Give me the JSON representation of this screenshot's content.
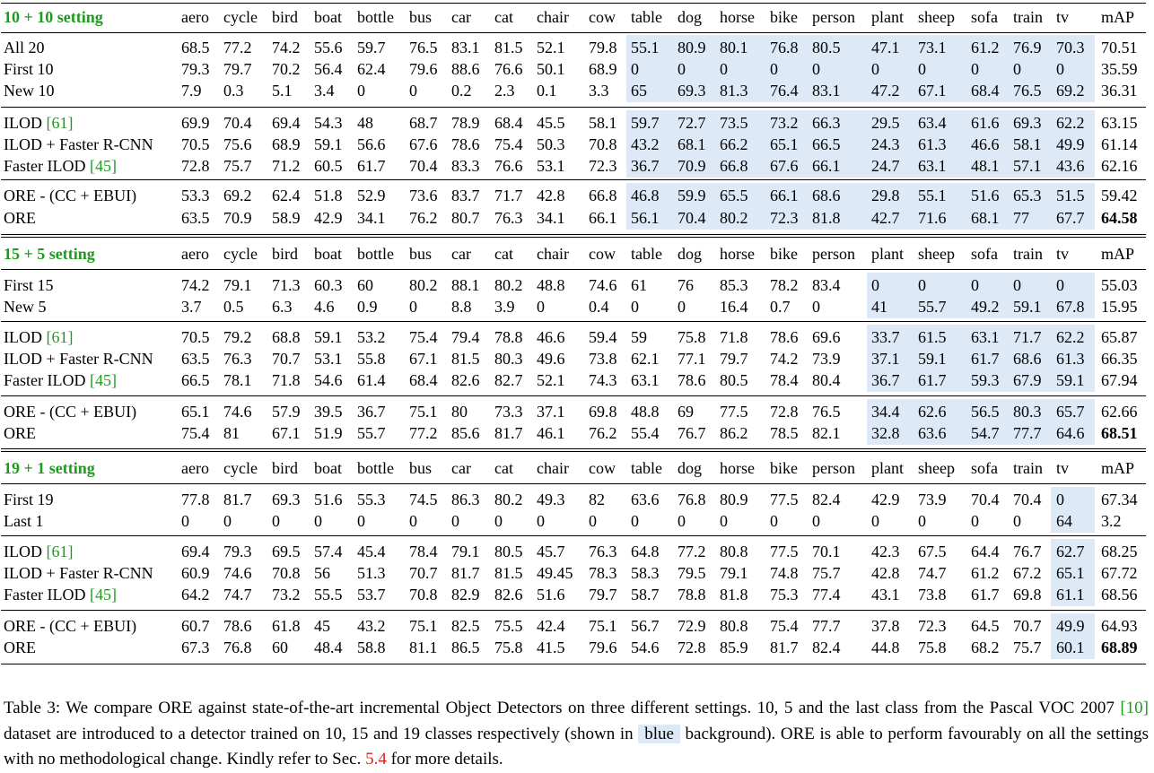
{
  "columns": [
    "aero",
    "cycle",
    "bird",
    "boat",
    "bottle",
    "bus",
    "car",
    "cat",
    "chair",
    "cow",
    "table",
    "dog",
    "horse",
    "bike",
    "person",
    "plant",
    "sheep",
    "sofa",
    "train",
    "tv",
    "mAP"
  ],
  "highlight_color": "#dde9f7",
  "heading_color": "#1f9a1f",
  "sections": [
    {
      "setting": "10 + 10 setting",
      "groups": [
        [
          {
            "method": "All 20",
            "values": [
              "68.5",
              "77.2",
              "74.2",
              "55.6",
              "59.7",
              "76.5",
              "83.1",
              "81.5",
              "52.1",
              "79.8",
              "55.1",
              "80.9",
              "80.1",
              "76.8",
              "80.5",
              "47.1",
              "73.1",
              "61.2",
              "76.9",
              "70.3",
              "70.51"
            ]
          },
          {
            "method": "First 10",
            "values": [
              "79.3",
              "79.7",
              "70.2",
              "56.4",
              "62.4",
              "79.6",
              "88.6",
              "76.6",
              "50.1",
              "68.9",
              "0",
              "0",
              "0",
              "0",
              "0",
              "0",
              "0",
              "0",
              "0",
              "0",
              "35.59"
            ]
          },
          {
            "method": "New 10",
            "values": [
              "7.9",
              "0.3",
              "5.1",
              "3.4",
              "0",
              "0",
              "0.2",
              "2.3",
              "0.1",
              "3.3",
              "65",
              "69.3",
              "81.3",
              "76.4",
              "83.1",
              "47.2",
              "67.1",
              "68.4",
              "76.5",
              "69.2",
              "36.31"
            ]
          }
        ],
        [
          {
            "method": "ILOD ",
            "ref": "[61]",
            "values": [
              "69.9",
              "70.4",
              "69.4",
              "54.3",
              "48",
              "68.7",
              "78.9",
              "68.4",
              "45.5",
              "58.1",
              "59.7",
              "72.7",
              "73.5",
              "73.2",
              "66.3",
              "29.5",
              "63.4",
              "61.6",
              "69.3",
              "62.2",
              "63.15"
            ]
          },
          {
            "method": "ILOD + Faster R-CNN",
            "values": [
              "70.5",
              "75.6",
              "68.9",
              "59.1",
              "56.6",
              "67.6",
              "78.6",
              "75.4",
              "50.3",
              "70.8",
              "43.2",
              "68.1",
              "66.2",
              "65.1",
              "66.5",
              "24.3",
              "61.3",
              "46.6",
              "58.1",
              "49.9",
              "61.14"
            ]
          },
          {
            "method": "Faster ILOD ",
            "ref": "[45]",
            "values": [
              "72.8",
              "75.7",
              "71.2",
              "60.5",
              "61.7",
              "70.4",
              "83.3",
              "76.6",
              "53.1",
              "72.3",
              "36.7",
              "70.9",
              "66.8",
              "67.6",
              "66.1",
              "24.7",
              "63.1",
              "48.1",
              "57.1",
              "43.6",
              "62.16"
            ]
          }
        ],
        [
          {
            "method": "ORE - (CC + EBUI)",
            "values": [
              "53.3",
              "69.2",
              "62.4",
              "51.8",
              "52.9",
              "73.6",
              "83.7",
              "71.7",
              "42.8",
              "66.8",
              "46.8",
              "59.9",
              "65.5",
              "66.1",
              "68.6",
              "29.8",
              "55.1",
              "51.6",
              "65.3",
              "51.5",
              "59.42"
            ]
          },
          {
            "method": "ORE",
            "bold_map": true,
            "values": [
              "63.5",
              "70.9",
              "58.9",
              "42.9",
              "34.1",
              "76.2",
              "80.7",
              "76.3",
              "34.1",
              "66.1",
              "56.1",
              "70.4",
              "80.2",
              "72.3",
              "81.8",
              "42.7",
              "71.6",
              "68.1",
              "77",
              "67.7",
              "64.58"
            ]
          }
        ]
      ]
    },
    {
      "setting": "15 + 5 setting",
      "groups": [
        [
          {
            "method": "First 15",
            "values": [
              "74.2",
              "79.1",
              "71.3",
              "60.3",
              "60",
              "80.2",
              "88.1",
              "80.2",
              "48.8",
              "74.6",
              "61",
              "76",
              "85.3",
              "78.2",
              "83.4",
              "0",
              "0",
              "0",
              "0",
              "0",
              "55.03"
            ]
          },
          {
            "method": "New 5",
            "values": [
              "3.7",
              "0.5",
              "6.3",
              "4.6",
              "0.9",
              "0",
              "8.8",
              "3.9",
              "0",
              "0.4",
              "0",
              "0",
              "16.4",
              "0.7",
              "0",
              "41",
              "55.7",
              "49.2",
              "59.1",
              "67.8",
              "15.95"
            ]
          }
        ],
        [
          {
            "method": "ILOD ",
            "ref": "[61]",
            "values": [
              "70.5",
              "79.2",
              "68.8",
              "59.1",
              "53.2",
              "75.4",
              "79.4",
              "78.8",
              "46.6",
              "59.4",
              "59",
              "75.8",
              "71.8",
              "78.6",
              "69.6",
              "33.7",
              "61.5",
              "63.1",
              "71.7",
              "62.2",
              "65.87"
            ]
          },
          {
            "method": "ILOD + Faster R-CNN",
            "values": [
              "63.5",
              "76.3",
              "70.7",
              "53.1",
              "55.8",
              "67.1",
              "81.5",
              "80.3",
              "49.6",
              "73.8",
              "62.1",
              "77.1",
              "79.7",
              "74.2",
              "73.9",
              "37.1",
              "59.1",
              "61.7",
              "68.6",
              "61.3",
              "66.35"
            ]
          },
          {
            "method": "Faster ILOD ",
            "ref": "[45]",
            "values": [
              "66.5",
              "78.1",
              "71.8",
              "54.6",
              "61.4",
              "68.4",
              "82.6",
              "82.7",
              "52.1",
              "74.3",
              "63.1",
              "78.6",
              "80.5",
              "78.4",
              "80.4",
              "36.7",
              "61.7",
              "59.3",
              "67.9",
              "59.1",
              "67.94"
            ]
          }
        ],
        [
          {
            "method": "ORE - (CC + EBUI)",
            "values": [
              "65.1",
              "74.6",
              "57.9",
              "39.5",
              "36.7",
              "75.1",
              "80",
              "73.3",
              "37.1",
              "69.8",
              "48.8",
              "69",
              "77.5",
              "72.8",
              "76.5",
              "34.4",
              "62.6",
              "56.5",
              "80.3",
              "65.7",
              "62.66"
            ]
          },
          {
            "method": "ORE",
            "bold_map": true,
            "values": [
              "75.4",
              "81",
              "67.1",
              "51.9",
              "55.7",
              "77.2",
              "85.6",
              "81.7",
              "46.1",
              "76.2",
              "55.4",
              "76.7",
              "86.2",
              "78.5",
              "82.1",
              "32.8",
              "63.6",
              "54.7",
              "77.7",
              "64.6",
              "68.51"
            ]
          }
        ]
      ]
    },
    {
      "setting": "19 + 1 setting",
      "groups": [
        [
          {
            "method": "First 19",
            "values": [
              "77.8",
              "81.7",
              "69.3",
              "51.6",
              "55.3",
              "74.5",
              "86.3",
              "80.2",
              "49.3",
              "82",
              "63.6",
              "76.8",
              "80.9",
              "77.5",
              "82.4",
              "42.9",
              "73.9",
              "70.4",
              "70.4",
              "0",
              "67.34"
            ]
          },
          {
            "method": "Last 1",
            "values": [
              "0",
              "0",
              "0",
              "0",
              "0",
              "0",
              "0",
              "0",
              "0",
              "0",
              "0",
              "0",
              "0",
              "0",
              "0",
              "0",
              "0",
              "0",
              "0",
              "64",
              "3.2"
            ]
          }
        ],
        [
          {
            "method": "ILOD ",
            "ref": "[61]",
            "values": [
              "69.4",
              "79.3",
              "69.5",
              "57.4",
              "45.4",
              "78.4",
              "79.1",
              "80.5",
              "45.7",
              "76.3",
              "64.8",
              "77.2",
              "80.8",
              "77.5",
              "70.1",
              "42.3",
              "67.5",
              "64.4",
              "76.7",
              "62.7",
              "68.25"
            ]
          },
          {
            "method": "ILOD + Faster R-CNN",
            "values": [
              "60.9",
              "74.6",
              "70.8",
              "56",
              "51.3",
              "70.7",
              "81.7",
              "81.5",
              "49.45",
              "78.3",
              "58.3",
              "79.5",
              "79.1",
              "74.8",
              "75.7",
              "42.8",
              "74.7",
              "61.2",
              "67.2",
              "65.1",
              "67.72"
            ]
          },
          {
            "method": "Faster ILOD ",
            "ref": "[45]",
            "values": [
              "64.2",
              "74.7",
              "73.2",
              "55.5",
              "53.7",
              "70.8",
              "82.9",
              "82.6",
              "51.6",
              "79.7",
              "58.7",
              "78.8",
              "81.8",
              "75.3",
              "77.4",
              "43.1",
              "73.8",
              "61.7",
              "69.8",
              "61.1",
              "68.56"
            ]
          }
        ],
        [
          {
            "method": "ORE - (CC + EBUI)",
            "values": [
              "60.7",
              "78.6",
              "61.8",
              "45",
              "43.2",
              "75.1",
              "82.5",
              "75.5",
              "42.4",
              "75.1",
              "56.7",
              "72.9",
              "80.8",
              "75.4",
              "77.7",
              "37.8",
              "72.3",
              "64.5",
              "70.7",
              "49.9",
              "64.93"
            ]
          },
          {
            "method": "ORE",
            "bold_map": true,
            "values": [
              "67.3",
              "76.8",
              "60",
              "48.4",
              "58.8",
              "81.1",
              "86.5",
              "75.8",
              "41.5",
              "79.6",
              "54.6",
              "72.8",
              "85.9",
              "81.7",
              "82.4",
              "44.8",
              "75.8",
              "68.2",
              "75.7",
              "60.1",
              "68.89"
            ]
          }
        ]
      ]
    }
  ],
  "caption": {
    "p1": "Table 3: We compare ORE against state-of-the-art incremental Object Detectors on three different settings. 10, 5 and the last class from the Pascal VOC 2007 ",
    "ref1": "[10]",
    "p2": " dataset are introduced to a detector trained on 10, 15 and 19 classes respectively (shown in ",
    "blue": "blue",
    "p3": " background). ORE is able to perform favourably on all the settings with no methodological change. Kindly refer to Sec. ",
    "ref2": "5.4",
    "p4": " for more details."
  }
}
